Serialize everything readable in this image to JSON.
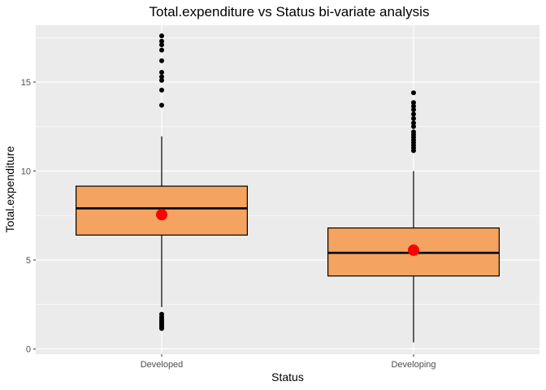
{
  "chart_data": {
    "type": "box",
    "title": "Total.expenditure vs Status bi-variate analysis",
    "xlabel": "Status",
    "ylabel": "Total.expenditure",
    "ylim": [
      -0.3,
      18.2
    ],
    "yticks": [
      0,
      5,
      10,
      15
    ],
    "categories": [
      "Developed",
      "Developing"
    ],
    "boxes": [
      {
        "category": "Developed",
        "whisker_low": 2.35,
        "q1": 6.4,
        "median": 7.9,
        "q3": 9.15,
        "whisker_high": 11.95,
        "mean": 7.55,
        "outliers": [
          1.15,
          1.25,
          1.32,
          1.4,
          1.5,
          1.6,
          1.7,
          1.8,
          1.95,
          13.7,
          14.55,
          15.1,
          15.3,
          15.55,
          16.2,
          16.8,
          17.1,
          17.3,
          17.6
        ]
      },
      {
        "category": "Developing",
        "whisker_low": 0.37,
        "q1": 4.1,
        "median": 5.4,
        "q3": 6.8,
        "whisker_high": 10.0,
        "mean": 5.55,
        "outliers": [
          11.15,
          11.3,
          11.45,
          11.6,
          11.75,
          11.9,
          12.05,
          12.2,
          12.5,
          12.7,
          12.95,
          13.2,
          13.45,
          13.65,
          13.85,
          14.4
        ]
      }
    ],
    "colors": {
      "box_fill": "#f4a460",
      "box_stroke": "#000000",
      "mean_point": "#ff0000",
      "outlier": "#000000",
      "panel_bg": "#ebebeb",
      "grid": "#ffffff"
    }
  }
}
